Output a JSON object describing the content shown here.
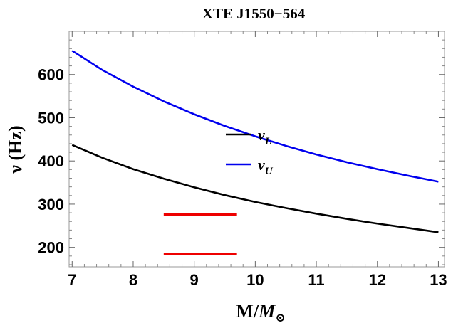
{
  "chart_data": {
    "type": "line",
    "title": "XTE J1550−564",
    "xlabel": "M/M⊙",
    "ylabel": "ν (Hz)",
    "xlim": [
      6.95,
      13.1
    ],
    "ylim": [
      155,
      700
    ],
    "xticks": [
      7,
      8,
      9,
      10,
      11,
      12,
      13
    ],
    "yticks": [
      200,
      300,
      400,
      500,
      600
    ],
    "grid": false,
    "legend_position": "center",
    "series": [
      {
        "name": "νL",
        "color": "#000000",
        "x": [
          7,
          7.5,
          8,
          8.5,
          9,
          9.5,
          10,
          10.5,
          11,
          11.5,
          12,
          12.5,
          13
        ],
        "y": [
          437,
          407,
          381,
          359,
          339,
          321,
          305,
          291,
          278,
          266,
          255,
          245,
          235
        ]
      },
      {
        "name": "νU",
        "color": "#0000ee",
        "x": [
          7,
          7.5,
          8,
          8.5,
          9,
          9.5,
          10,
          10.5,
          11,
          11.5,
          12,
          12.5,
          13
        ],
        "y": [
          655,
          610,
          572,
          538,
          508,
          481,
          457,
          435,
          415,
          397,
          381,
          366,
          352
        ]
      }
    ],
    "observed_ranges": {
      "color": "#ee0000",
      "x_range": [
        8.5,
        9.7
      ],
      "frequencies": [
        276,
        184
      ]
    }
  }
}
